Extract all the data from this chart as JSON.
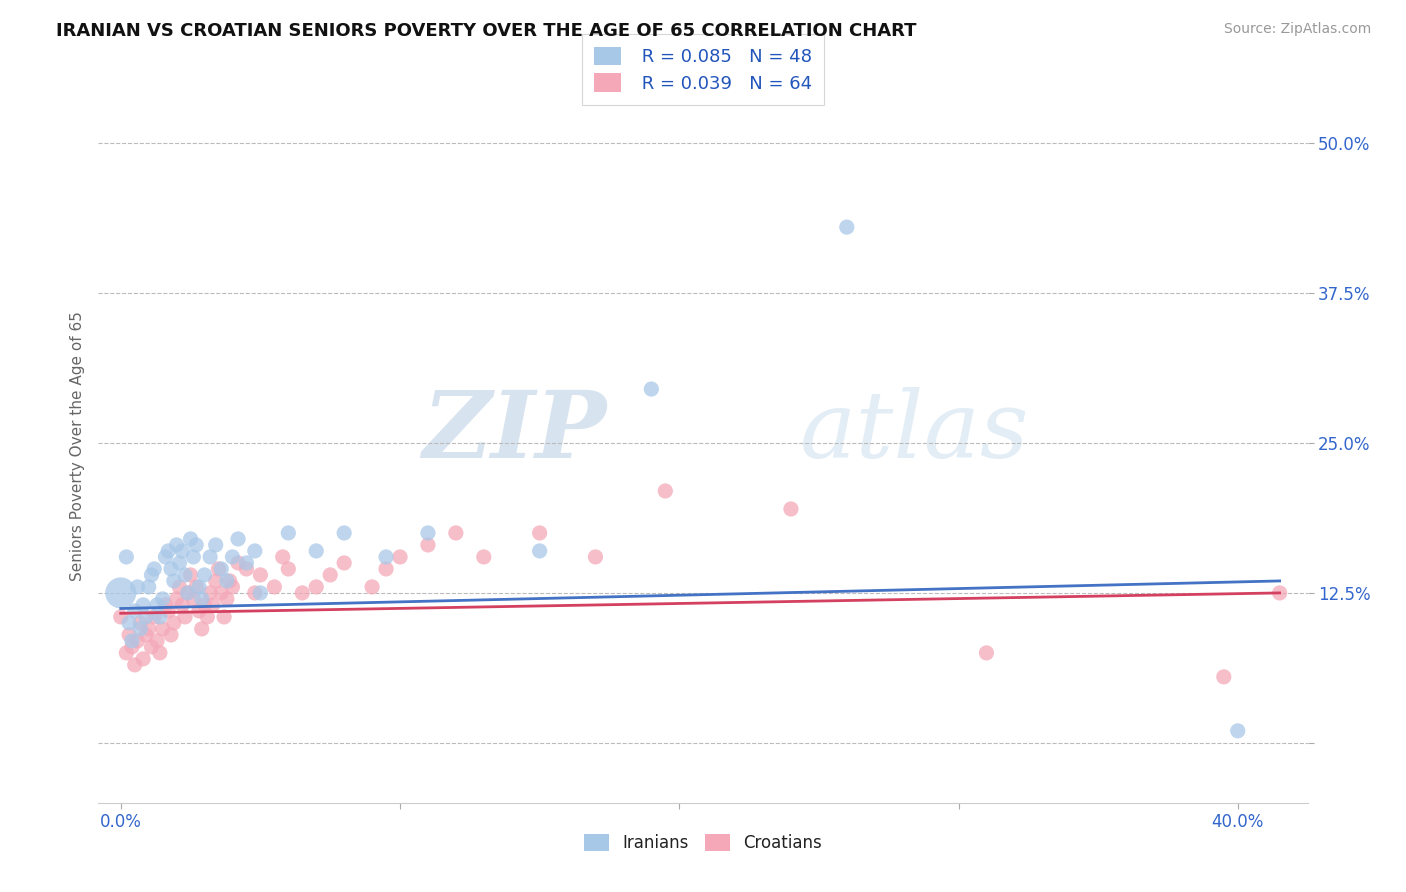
{
  "title": "IRANIAN VS CROATIAN SENIORS POVERTY OVER THE AGE OF 65 CORRELATION CHART",
  "source": "Source: ZipAtlas.com",
  "ylabel_label": "Seniors Poverty Over the Age of 65",
  "x_ticks": [
    0.0,
    0.1,
    0.2,
    0.3,
    0.4
  ],
  "x_tick_labels": [
    "0.0%",
    "",
    "",
    "",
    "40.0%"
  ],
  "y_ticks": [
    0.0,
    0.125,
    0.25,
    0.375,
    0.5
  ],
  "y_tick_labels": [
    "",
    "12.5%",
    "25.0%",
    "37.5%",
    "50.0%"
  ],
  "xlim": [
    -0.008,
    0.425
  ],
  "ylim": [
    -0.05,
    0.545
  ],
  "iranian_R": "0.085",
  "iranian_N": "48",
  "croatian_R": "0.039",
  "croatian_N": "64",
  "iranian_color": "#a8c8e8",
  "croatian_color": "#f4a8b8",
  "trendline_iranian_color": "#4472c4",
  "trendline_croatian_color": "#d44060",
  "background_color": "#ffffff",
  "grid_color": "#bbbbbb",
  "watermark_zip": "ZIP",
  "watermark_atlas": "atlas",
  "iranians_x": [
    0.0,
    0.002,
    0.003,
    0.004,
    0.005,
    0.006,
    0.007,
    0.008,
    0.009,
    0.01,
    0.011,
    0.012,
    0.013,
    0.014,
    0.015,
    0.016,
    0.017,
    0.018,
    0.019,
    0.02,
    0.021,
    0.022,
    0.023,
    0.024,
    0.025,
    0.026,
    0.027,
    0.028,
    0.029,
    0.03,
    0.032,
    0.034,
    0.036,
    0.038,
    0.04,
    0.042,
    0.045,
    0.048,
    0.05,
    0.06,
    0.07,
    0.08,
    0.095,
    0.11,
    0.15,
    0.19,
    0.26,
    0.4
  ],
  "iranians_y": [
    0.125,
    0.155,
    0.1,
    0.085,
    0.11,
    0.13,
    0.095,
    0.115,
    0.105,
    0.13,
    0.14,
    0.145,
    0.115,
    0.105,
    0.12,
    0.155,
    0.16,
    0.145,
    0.135,
    0.165,
    0.15,
    0.16,
    0.14,
    0.125,
    0.17,
    0.155,
    0.165,
    0.13,
    0.12,
    0.14,
    0.155,
    0.165,
    0.145,
    0.135,
    0.155,
    0.17,
    0.15,
    0.16,
    0.125,
    0.175,
    0.16,
    0.175,
    0.155,
    0.175,
    0.16,
    0.295,
    0.43,
    0.01
  ],
  "iranians_large": [
    0
  ],
  "croatians_x": [
    0.0,
    0.002,
    0.003,
    0.004,
    0.005,
    0.006,
    0.007,
    0.008,
    0.009,
    0.01,
    0.011,
    0.012,
    0.013,
    0.014,
    0.015,
    0.016,
    0.017,
    0.018,
    0.019,
    0.02,
    0.021,
    0.022,
    0.023,
    0.024,
    0.025,
    0.026,
    0.027,
    0.028,
    0.029,
    0.03,
    0.031,
    0.032,
    0.033,
    0.034,
    0.035,
    0.036,
    0.037,
    0.038,
    0.039,
    0.04,
    0.042,
    0.045,
    0.048,
    0.05,
    0.055,
    0.058,
    0.06,
    0.065,
    0.07,
    0.075,
    0.08,
    0.09,
    0.095,
    0.1,
    0.11,
    0.12,
    0.13,
    0.15,
    0.17,
    0.195,
    0.24,
    0.31,
    0.395,
    0.415
  ],
  "croatians_y": [
    0.105,
    0.075,
    0.09,
    0.08,
    0.065,
    0.085,
    0.1,
    0.07,
    0.09,
    0.095,
    0.08,
    0.105,
    0.085,
    0.075,
    0.095,
    0.115,
    0.11,
    0.09,
    0.1,
    0.12,
    0.13,
    0.115,
    0.105,
    0.125,
    0.14,
    0.12,
    0.13,
    0.11,
    0.095,
    0.115,
    0.105,
    0.125,
    0.115,
    0.135,
    0.145,
    0.125,
    0.105,
    0.12,
    0.135,
    0.13,
    0.15,
    0.145,
    0.125,
    0.14,
    0.13,
    0.155,
    0.145,
    0.125,
    0.13,
    0.14,
    0.15,
    0.13,
    0.145,
    0.155,
    0.165,
    0.175,
    0.155,
    0.175,
    0.155,
    0.21,
    0.195,
    0.075,
    0.055,
    0.125
  ],
  "trendline_x": [
    0.0,
    0.415
  ],
  "iranian_trend_y": [
    0.112,
    0.135
  ],
  "croatian_trend_y": [
    0.108,
    0.125
  ]
}
